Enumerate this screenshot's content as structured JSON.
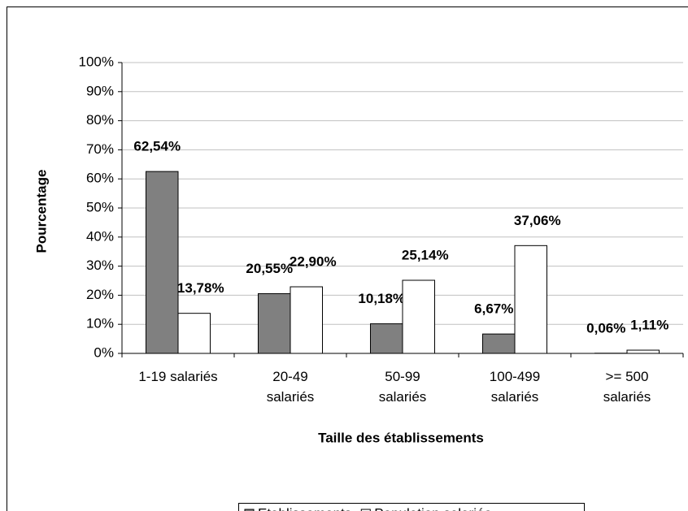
{
  "chart_data": {
    "type": "bar",
    "x_label": "Taille des établissements",
    "y_label": "Pourcentage",
    "categories": [
      "1-19 salariés",
      "20-49\nsalariés",
      "50-99\nsalariés",
      "100-499\nsalariés",
      ">= 500\nsalariés"
    ],
    "series": [
      {
        "name": "Etablissements",
        "color": "#808080",
        "values": [
          62.54,
          20.55,
          10.18,
          6.67,
          0.06
        ],
        "value_labels": [
          "62,54%",
          "20,55%",
          "10,18%",
          "6,67%",
          "0,06%"
        ]
      },
      {
        "name": "Population salariée",
        "color": "#ffffff",
        "values": [
          13.78,
          22.9,
          25.14,
          37.06,
          1.11
        ],
        "value_labels": [
          "13,78%",
          "22,90%",
          "25,14%",
          "37,06%",
          "1,11%"
        ]
      }
    ],
    "ylim": [
      0,
      100
    ],
    "yticks": [
      {
        "value": 0,
        "label": "0%"
      },
      {
        "value": 10,
        "label": "10%"
      },
      {
        "value": 20,
        "label": "20%"
      },
      {
        "value": 30,
        "label": "30%"
      },
      {
        "value": 40,
        "label": "40%"
      },
      {
        "value": 50,
        "label": "50%"
      },
      {
        "value": 60,
        "label": "60%"
      },
      {
        "value": 70,
        "label": "70%"
      },
      {
        "value": 80,
        "label": "80%"
      },
      {
        "value": 90,
        "label": "90%"
      },
      {
        "value": 100,
        "label": "100%"
      }
    ],
    "grid": true,
    "legend": "bottom"
  }
}
